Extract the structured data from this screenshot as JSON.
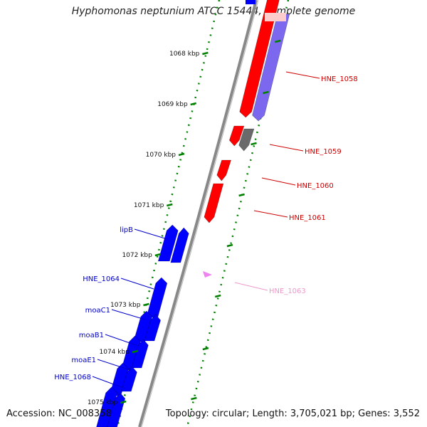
{
  "title": "Hyphomonas neptunium ATCC 15444, complete genome",
  "accession_text": "Accession: NC_008358",
  "summary_text": "Topology: circular; Length: 3,705,021 bp; Genes: 3,552",
  "colors": {
    "backbone": "#888888",
    "plus_strand_gene": "#0000ff",
    "minus_strand_gene": "#ff0000",
    "cds_purple": "#7b68ee",
    "gray_gene": "#6a6a6a",
    "rna_pink": "#ee82ee",
    "tick_green": "#008000",
    "label_red": "#cc0000",
    "label_blue": "#0000cc",
    "label_pink": "#ee99cc"
  },
  "ticks": [
    "1068 kbp",
    "1069 kbp",
    "1070 kbp",
    "1071 kbp",
    "1072 kbp",
    "1073 kbp",
    "1074 kbp",
    "1075 kbp"
  ],
  "red_labels": [
    "HNE_1058",
    "HNE_1059",
    "HNE_1060",
    "HNE_1061"
  ],
  "pink_labels": [
    "HNE_1063"
  ],
  "blue_labels": [
    "lipB",
    "HNE_1064",
    "moaC1",
    "moaB1",
    "moaE1",
    "HNE_1068"
  ]
}
